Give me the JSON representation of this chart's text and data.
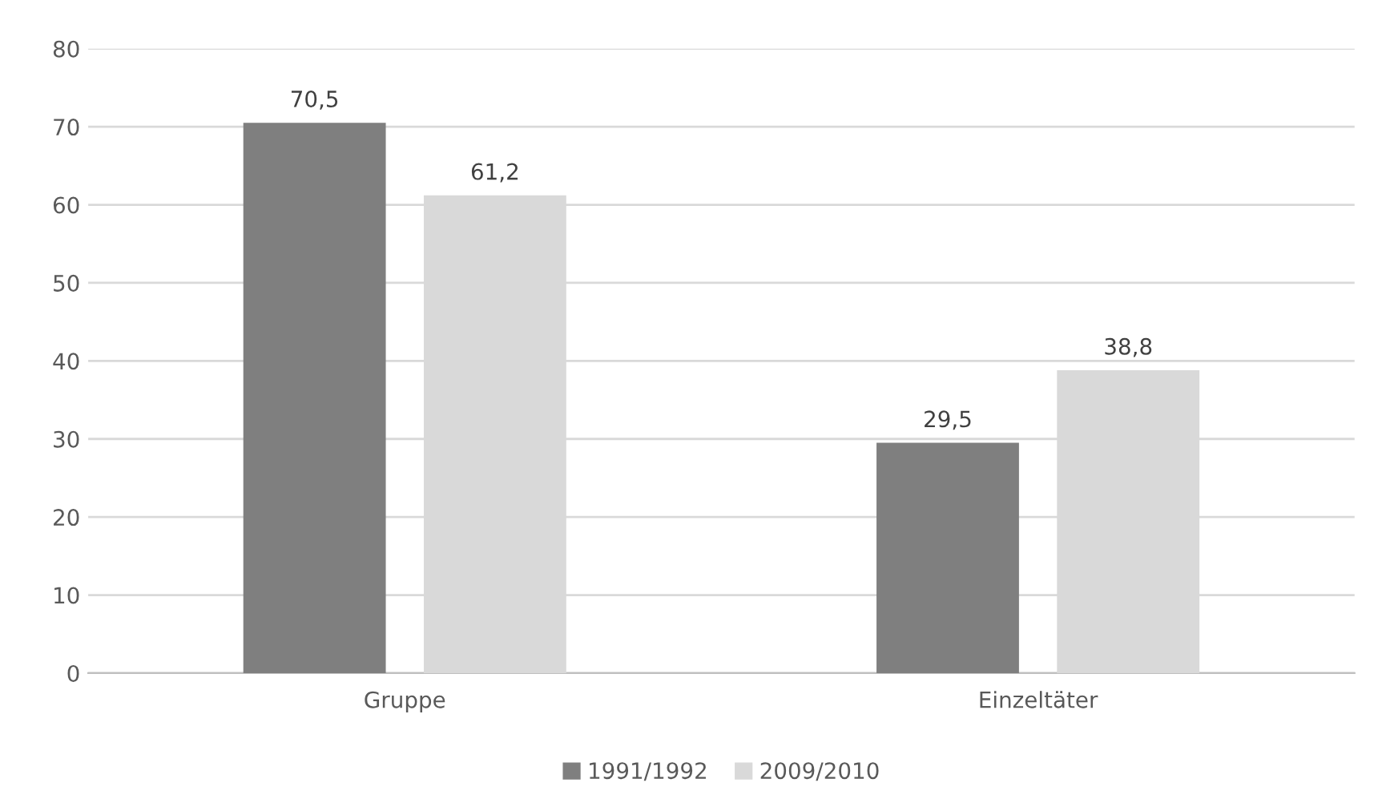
{
  "chart_data": {
    "type": "bar",
    "categories": [
      "Gruppe",
      "Einzeltäter"
    ],
    "series": [
      {
        "name": "1991/1992",
        "color": "#7f7f7f",
        "values": [
          70.5,
          29.5
        ],
        "value_labels": [
          "70,5",
          "29,5"
        ]
      },
      {
        "name": "2009/2010",
        "color": "#d9d9d9",
        "values": [
          61.2,
          38.8
        ],
        "value_labels": [
          "61,2",
          "38,8"
        ]
      }
    ],
    "ylim": [
      0,
      80
    ],
    "yticks": [
      0,
      10,
      20,
      30,
      40,
      50,
      60,
      70,
      80
    ],
    "grid": "y",
    "legend": "bottom"
  }
}
